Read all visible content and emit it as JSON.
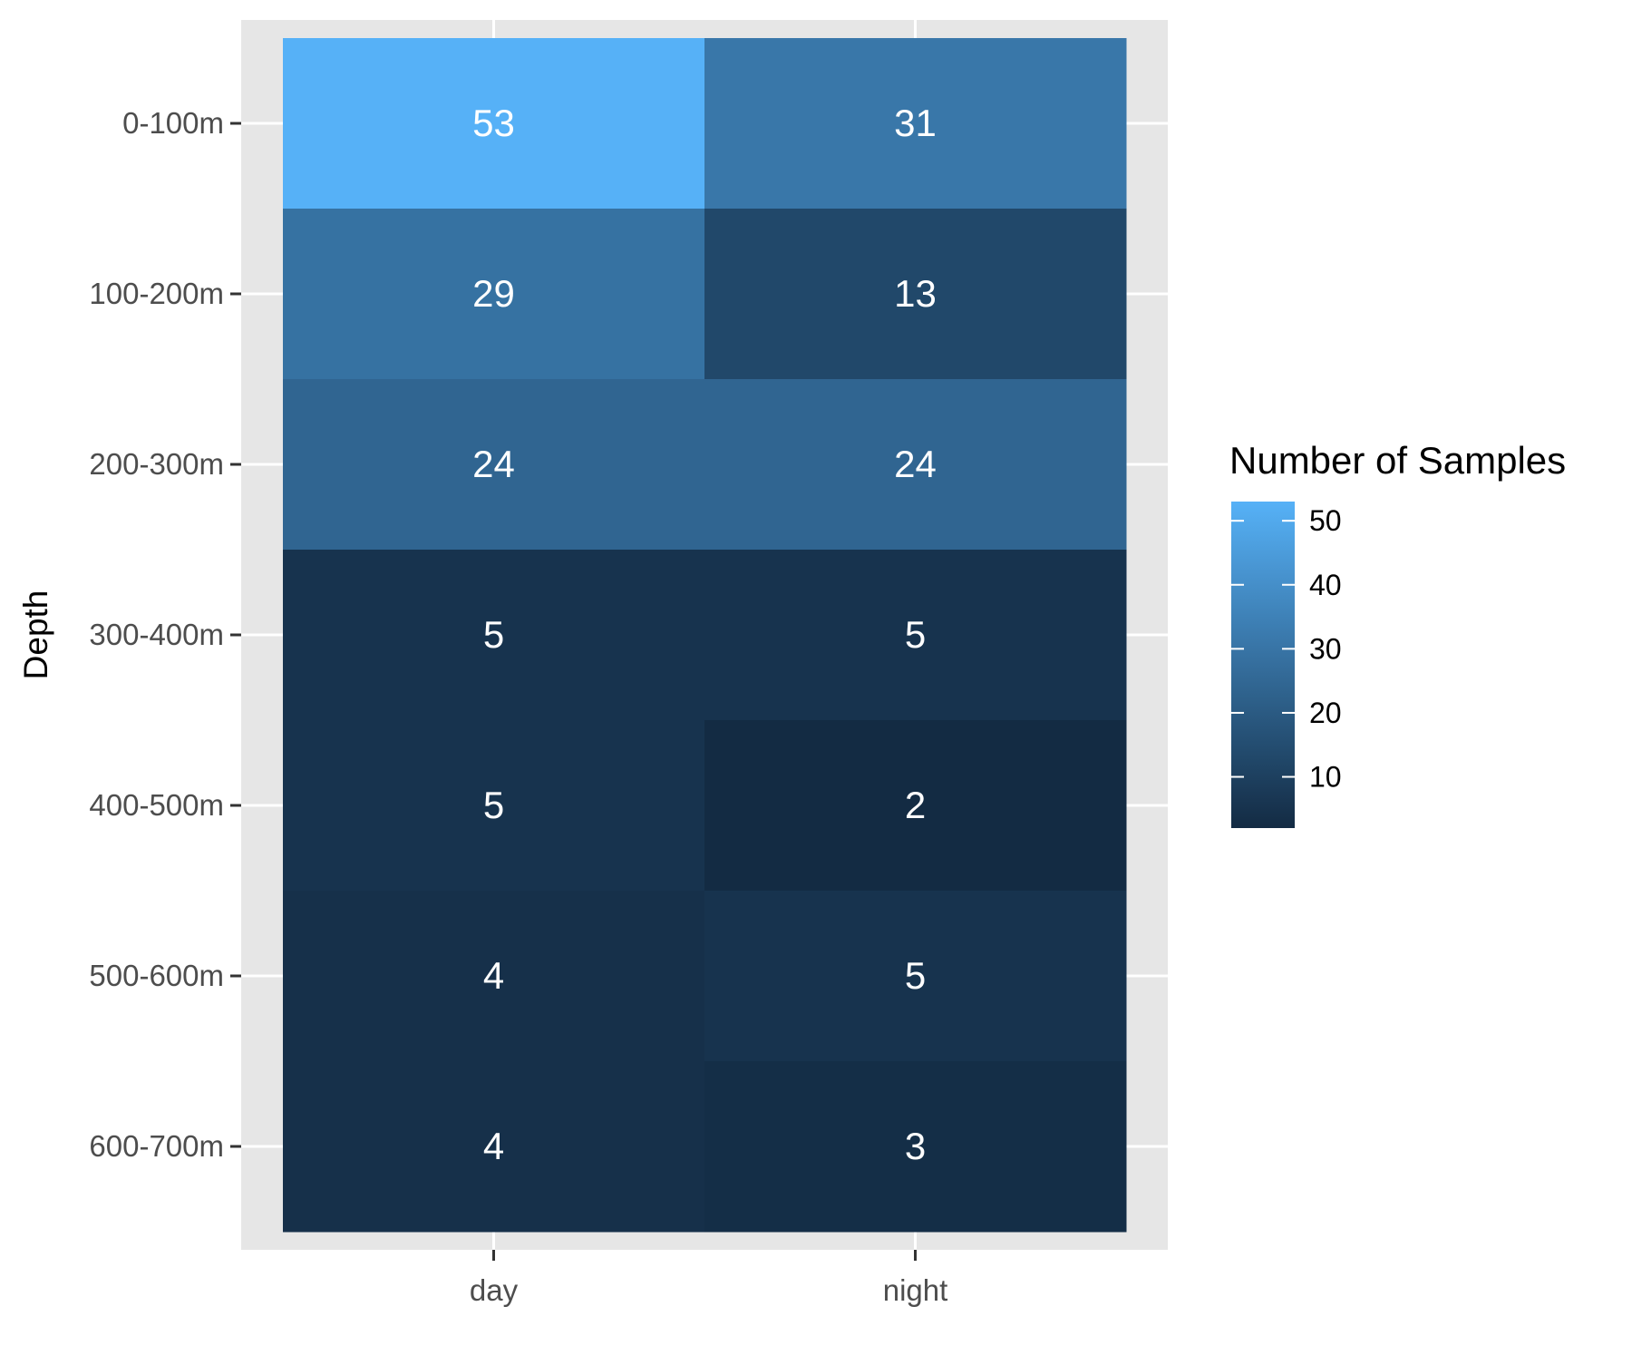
{
  "chart_data": {
    "type": "heatmap",
    "title": "",
    "xlabel": "",
    "ylabel": "Depth",
    "x_categories": [
      "day",
      "night"
    ],
    "y_categories": [
      "0-100m",
      "100-200m",
      "200-300m",
      "300-400m",
      "400-500m",
      "500-600m",
      "600-700m"
    ],
    "values": [
      [
        53,
        31
      ],
      [
        29,
        13
      ],
      [
        24,
        24
      ],
      [
        5,
        5
      ],
      [
        5,
        2
      ],
      [
        4,
        5
      ],
      [
        4,
        3
      ]
    ],
    "legend": {
      "title": "Number of Samples",
      "ticks": [
        10,
        20,
        30,
        40,
        50
      ],
      "range": [
        2,
        53
      ],
      "color_low": "#132B43",
      "color_high": "#56B1F7",
      "placement": "right"
    },
    "panel_background": "#e6e6e6",
    "grid": true
  }
}
